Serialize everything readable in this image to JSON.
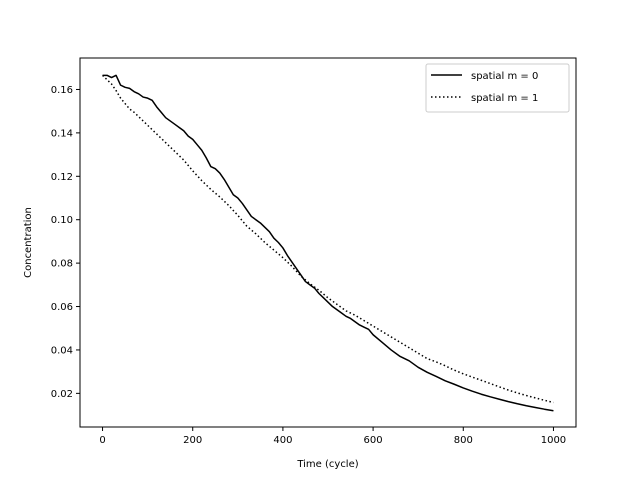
{
  "chart_data": {
    "type": "line",
    "title": "",
    "xlabel": "Time (cycle)",
    "ylabel": "Concentration",
    "xlim": [
      -50,
      1050
    ],
    "ylim": [
      0.0045,
      0.1745
    ],
    "xticks": [
      0,
      200,
      400,
      600,
      800,
      1000
    ],
    "xtick_labels": [
      "0",
      "200",
      "400",
      "600",
      "800",
      "1000"
    ],
    "yticks": [
      0.02,
      0.04,
      0.06,
      0.08,
      0.1,
      0.12,
      0.14,
      0.16
    ],
    "ytick_labels": [
      "0.02",
      "0.04",
      "0.06",
      "0.08",
      "0.10",
      "0.12",
      "0.14",
      "0.16"
    ],
    "grid": false,
    "legend_position": "upper right",
    "series": [
      {
        "name": "spatial m = 0",
        "style": "solid",
        "color": "#000000",
        "x": [
          0,
          10,
          20,
          30,
          40,
          50,
          60,
          70,
          80,
          90,
          100,
          110,
          120,
          130,
          140,
          150,
          160,
          170,
          180,
          190,
          200,
          210,
          220,
          230,
          240,
          250,
          260,
          270,
          280,
          290,
          300,
          310,
          320,
          330,
          340,
          350,
          360,
          370,
          380,
          390,
          400,
          410,
          420,
          430,
          440,
          450,
          460,
          470,
          480,
          490,
          500,
          510,
          520,
          530,
          540,
          550,
          560,
          570,
          580,
          590,
          600,
          620,
          640,
          660,
          680,
          700,
          720,
          740,
          760,
          780,
          800,
          820,
          840,
          860,
          880,
          900,
          920,
          940,
          960,
          980,
          1000
        ],
        "y": [
          0.1665,
          0.1665,
          0.1655,
          0.1665,
          0.162,
          0.161,
          0.1605,
          0.159,
          0.158,
          0.1565,
          0.156,
          0.155,
          0.152,
          0.1495,
          0.147,
          0.1455,
          0.144,
          0.1425,
          0.141,
          0.1385,
          0.137,
          0.1345,
          0.132,
          0.1285,
          0.1245,
          0.1235,
          0.1215,
          0.1185,
          0.115,
          0.1115,
          0.11,
          0.1075,
          0.1045,
          0.1015,
          0.1,
          0.0985,
          0.0965,
          0.0945,
          0.0915,
          0.0895,
          0.087,
          0.0835,
          0.0805,
          0.0775,
          0.0745,
          0.0715,
          0.07,
          0.0685,
          0.066,
          0.064,
          0.062,
          0.06,
          0.0585,
          0.057,
          0.0555,
          0.0545,
          0.053,
          0.0515,
          0.0505,
          0.0495,
          0.047,
          0.0435,
          0.04,
          0.037,
          0.035,
          0.032,
          0.0297,
          0.0278,
          0.0258,
          0.0242,
          0.0225,
          0.021,
          0.0196,
          0.0184,
          0.0173,
          0.0162,
          0.0152,
          0.0143,
          0.0135,
          0.0127,
          0.012
        ]
      },
      {
        "name": "spatial m = 1",
        "style": "dotted",
        "color": "#000000",
        "x": [
          0,
          10,
          20,
          30,
          40,
          50,
          60,
          70,
          80,
          90,
          100,
          120,
          140,
          160,
          180,
          200,
          220,
          240,
          260,
          280,
          300,
          320,
          340,
          360,
          380,
          400,
          420,
          440,
          460,
          480,
          500,
          520,
          540,
          560,
          580,
          600,
          620,
          640,
          660,
          680,
          700,
          720,
          740,
          760,
          780,
          800,
          820,
          840,
          860,
          880,
          900,
          920,
          940,
          960,
          980,
          1000
        ],
        "y": [
          0.1665,
          0.1645,
          0.1625,
          0.1595,
          0.156,
          0.1535,
          0.151,
          0.1495,
          0.1475,
          0.1455,
          0.1435,
          0.1395,
          0.1355,
          0.1315,
          0.1275,
          0.1225,
          0.118,
          0.114,
          0.1105,
          0.1065,
          0.102,
          0.097,
          0.0935,
          0.0895,
          0.086,
          0.0825,
          0.0785,
          0.074,
          0.0705,
          0.0675,
          0.064,
          0.061,
          0.058,
          0.056,
          0.0535,
          0.051,
          0.0485,
          0.046,
          0.0435,
          0.041,
          0.0385,
          0.036,
          0.0345,
          0.0327,
          0.0307,
          0.029,
          0.0275,
          0.026,
          0.0245,
          0.023,
          0.0215,
          0.0202,
          0.019,
          0.0179,
          0.0168,
          0.0158
        ]
      }
    ]
  }
}
